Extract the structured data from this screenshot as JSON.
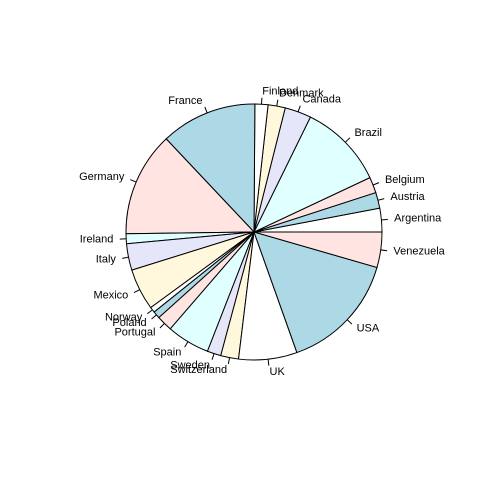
{
  "chart_data": {
    "type": "pie",
    "title": "",
    "start_angle_deg": 0,
    "direction": "counterclockwise",
    "palette": [
      "#ffffff",
      "#add8e6",
      "#ffe4e1",
      "#e0ffff",
      "#e6e6fa",
      "#fff8dc"
    ],
    "border_color": "#000000",
    "slices": [
      {
        "label": "Argentina",
        "value": 6.9
      },
      {
        "label": "Austria",
        "value": 4.6
      },
      {
        "label": "Belgium",
        "value": 4.6
      },
      {
        "label": "Brazil",
        "value": 24.8
      },
      {
        "label": "Canada",
        "value": 7.7
      },
      {
        "label": "Denmark",
        "value": 5.0
      },
      {
        "label": "Finland",
        "value": 3.8
      },
      {
        "label": "France",
        "value": 28.0
      },
      {
        "label": "Germany",
        "value": 30.4
      },
      {
        "label": "Ireland",
        "value": 2.9
      },
      {
        "label": "Italy",
        "value": 7.7
      },
      {
        "label": "Mexico",
        "value": 12.1
      },
      {
        "label": "Norway",
        "value": 1.6
      },
      {
        "label": "Poland",
        "value": 2.1
      },
      {
        "label": "Portugal",
        "value": 4.6
      },
      {
        "label": "Spain",
        "value": 12.5
      },
      {
        "label": "Sweden",
        "value": 4.0
      },
      {
        "label": "Switzerland",
        "value": 5.2
      },
      {
        "label": "UK",
        "value": 17.0
      },
      {
        "label": "USA",
        "value": 34.8
      },
      {
        "label": "Venezuela",
        "value": 10.3
      }
    ]
  }
}
